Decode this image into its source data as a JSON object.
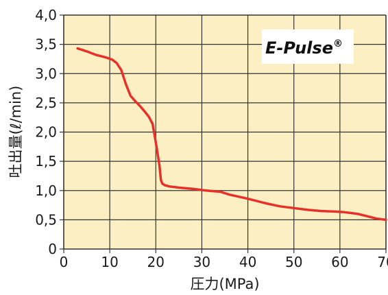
{
  "chart_data": {
    "type": "line",
    "title": "",
    "xlabel": "圧力(MPa)",
    "ylabel": "吐出量(ℓ/min)",
    "xlim": [
      0,
      70
    ],
    "ylim": [
      0,
      4
    ],
    "x_ticks": [
      "0",
      "10",
      "20",
      "30",
      "40",
      "50",
      "60",
      "70"
    ],
    "y_ticks": [
      "0",
      "0,5",
      "1,0",
      "1,5",
      "2,0",
      "2,5",
      "3,0",
      "3,5",
      "4,0"
    ],
    "grid": true,
    "badge": {
      "text": "E-Pulse",
      "superscript": "®"
    },
    "colors": {
      "plot_background": "#fbefc3",
      "grid": "#333333",
      "line": "#e8302a",
      "badge_background": "#ffffff"
    },
    "series": [
      {
        "x": [
          3,
          5,
          7,
          9,
          10.5,
          11.5,
          12.5,
          13.5,
          14.5,
          15.5,
          16.5,
          17.5,
          18.5,
          19.3,
          19.8,
          20.3,
          20.8,
          21.1,
          21.4,
          22,
          23,
          25,
          28,
          31,
          34,
          36,
          40,
          44,
          47,
          50,
          53,
          56,
          59,
          61,
          64,
          66,
          68,
          70
        ],
        "y": [
          3.43,
          3.38,
          3.32,
          3.28,
          3.24,
          3.18,
          3.06,
          2.82,
          2.62,
          2.53,
          2.45,
          2.36,
          2.26,
          2.14,
          1.92,
          1.68,
          1.42,
          1.18,
          1.12,
          1.09,
          1.07,
          1.05,
          1.03,
          1.0,
          0.98,
          0.93,
          0.86,
          0.78,
          0.73,
          0.7,
          0.67,
          0.65,
          0.64,
          0.63,
          0.6,
          0.56,
          0.52,
          0.5
        ]
      }
    ]
  }
}
